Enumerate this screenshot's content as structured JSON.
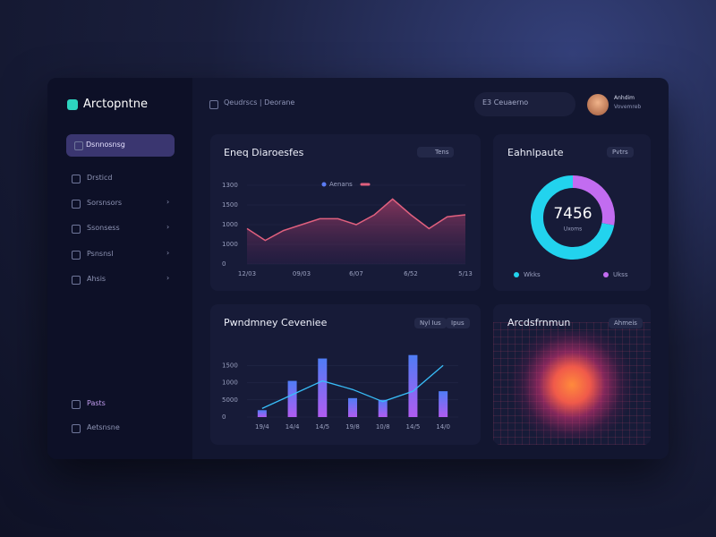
{
  "sidebar": {
    "brand": "Arctopntne",
    "items": [
      "Dsnnosnsg",
      "Drsticd",
      "Sorsnsors",
      "Ssonsess",
      "Psnsnsl",
      "Ahsis"
    ],
    "footer": [
      "Pasts",
      "Aetsnsne"
    ]
  },
  "header": {
    "breadcrumb": "Qeudrscs | Deorane",
    "search": "E3  Ceuaerno",
    "user_name": "Anhdim",
    "user_role": "Vovemreb"
  },
  "area": {
    "type": "line",
    "title": "Eneq Diaroesfes",
    "toggle": "Tens",
    "x": [
      0,
      1,
      2,
      3,
      4,
      5,
      6,
      7,
      8,
      9,
      10,
      11,
      12
    ],
    "series": [
      {
        "name": "Aenans",
        "color": "#e0607e",
        "values": [
          1.8,
          1.2,
          1.7,
          2.0,
          2.3,
          2.3,
          2.0,
          2.5,
          3.3,
          2.5,
          1.8,
          2.4,
          2.5
        ]
      }
    ],
    "xlim": [
      0,
      12
    ],
    "xticks": [
      {
        "value": 0,
        "label": "12/03"
      },
      {
        "value": 3,
        "label": "09/03"
      },
      {
        "value": 6,
        "label": "6/07"
      },
      {
        "value": 9,
        "label": "6/52"
      },
      {
        "value": 12,
        "label": "5/13"
      }
    ],
    "ylim": [
      0,
      4
    ],
    "yticks": [
      {
        "value": 4,
        "label": "1300"
      },
      {
        "value": 3,
        "label": "1500"
      },
      {
        "value": 2,
        "label": "1000"
      },
      {
        "value": 1,
        "label": "1000"
      },
      {
        "value": 0,
        "label": "0"
      }
    ]
  },
  "bars": {
    "type": "bar",
    "title": "Pwndmney Ceveniee",
    "buttons": [
      "Nyl Ius",
      "Ipus"
    ],
    "categories": [
      "19/4",
      "14/4",
      "14/5",
      "19/8",
      "10/8",
      "14/5",
      "14/0"
    ],
    "series": [
      {
        "type": "bar",
        "color": "#8b5cf6",
        "values": [
          0.4,
          2.1,
          3.4,
          1.1,
          1.0,
          3.6,
          1.5
        ]
      },
      {
        "type": "line",
        "color": "#38bdf8",
        "values": [
          0.5,
          1.3,
          2.1,
          1.6,
          0.9,
          1.5,
          3.0
        ]
      }
    ],
    "ylim": [
      0,
      4
    ],
    "yticks": [
      {
        "value": 3,
        "label": "1500"
      },
      {
        "value": 2,
        "label": "1000"
      },
      {
        "value": 1,
        "label": "5000"
      },
      {
        "value": 0,
        "label": "0"
      }
    ]
  },
  "donut": {
    "type": "pie",
    "title": "Eahnlpaute",
    "button": "Pvtrs",
    "center_label": "7456",
    "center_sublabel": "Uxoms",
    "series": [
      {
        "name": "Ukss",
        "color": "#c26cf0",
        "value": 28
      },
      {
        "name": "Wkks",
        "color": "#22d3ee",
        "value": 72
      }
    ]
  },
  "heatmap": {
    "title": "Arcdsfrnmun",
    "button": "Ahmeis"
  }
}
